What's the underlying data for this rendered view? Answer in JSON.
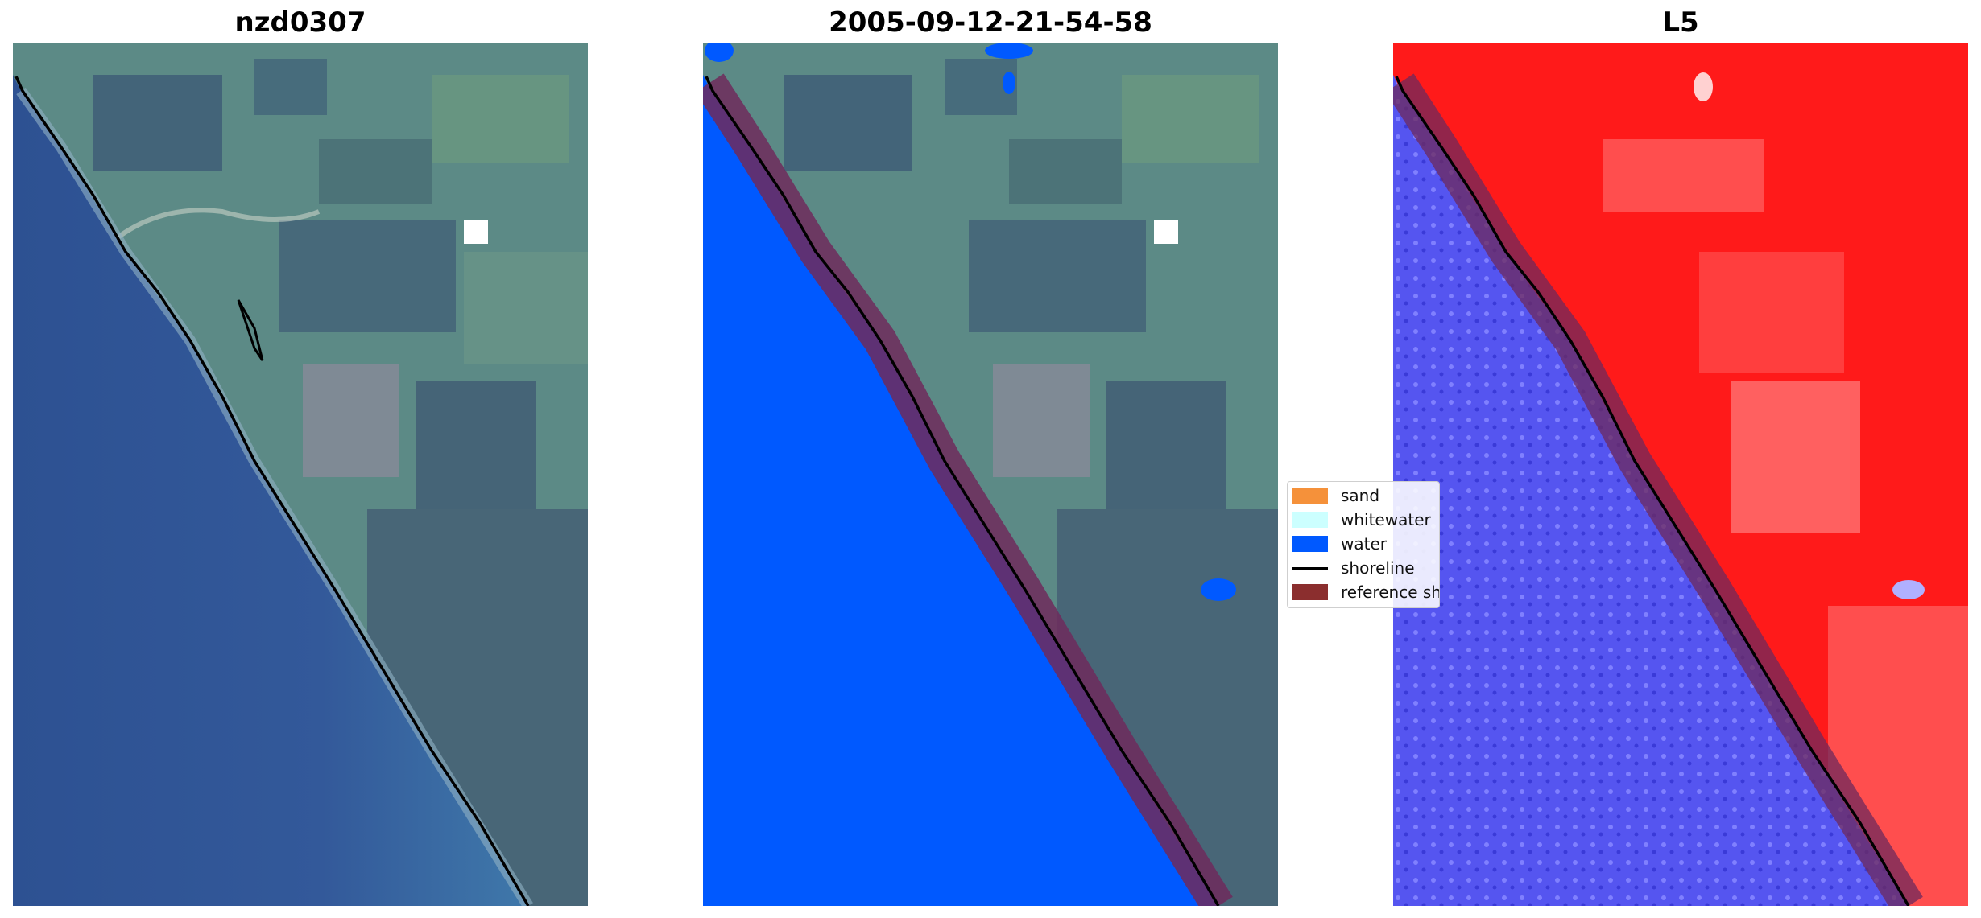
{
  "panels": [
    {
      "title": "nzd0307"
    },
    {
      "title": "2005-09-12-21-54-58"
    },
    {
      "title": "L5"
    }
  ],
  "legend": {
    "items": [
      {
        "label": "sand",
        "color": "#f5913a"
      },
      {
        "label": "whitewater",
        "color": "#ccffff"
      },
      {
        "label": "water",
        "color": "#0059ff"
      },
      {
        "label": "shoreline",
        "color": "#000000"
      },
      {
        "label": "reference shoreline buffer",
        "color": "#8b2e2e"
      }
    ]
  }
}
